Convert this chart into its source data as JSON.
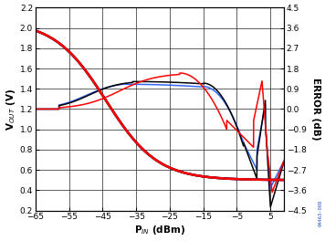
{
  "xlabel": "P_IN (dBm)",
  "ylabel_left": "V_OUT (V)",
  "ylabel_right": "ERROR (dB)",
  "xlim": [
    -65,
    9
  ],
  "ylim_left": [
    0.2,
    2.2
  ],
  "ylim_right": [
    -4.5,
    4.5
  ],
  "xticks": [
    -65,
    -55,
    -45,
    -35,
    -25,
    -15,
    -5,
    5
  ],
  "yticks_left": [
    0.2,
    0.4,
    0.6,
    0.8,
    1.0,
    1.2,
    1.4,
    1.6,
    1.8,
    2.0,
    2.2
  ],
  "yticks_right": [
    -4.5,
    -3.6,
    -2.7,
    -1.8,
    -0.9,
    0,
    0.9,
    1.8,
    2.7,
    3.6,
    4.5
  ],
  "background_color": "#ffffff",
  "colors": {
    "blue": "#3366ff",
    "black": "#000000",
    "red": "#ff0000",
    "darkgray": "#444444"
  },
  "watermark": "04463-008"
}
